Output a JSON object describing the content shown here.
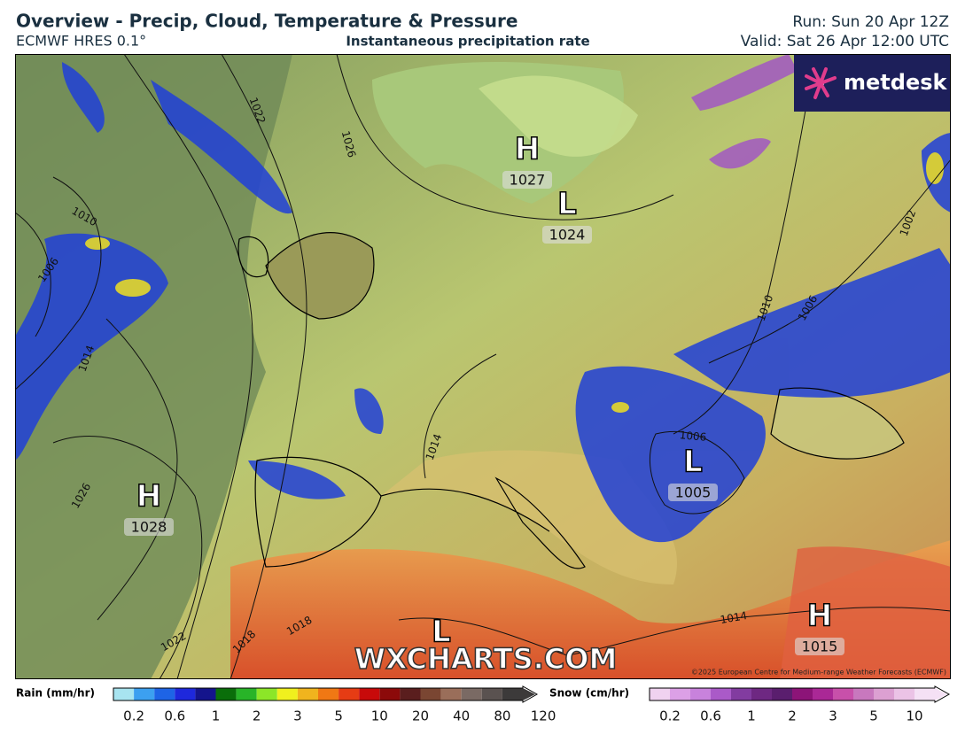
{
  "header": {
    "title": "Overview - Precip, Cloud, Temperature & Pressure",
    "model": "ECMWF HRES 0.1°",
    "subtitle": "Instantaneous precipitation rate",
    "run": "Run: Sun 20 Apr 12Z",
    "valid": "Valid: Sat 26 Apr 12:00 UTC"
  },
  "map": {
    "logo": "metdesk",
    "watermark": "WXCHARTS.COM",
    "copyright": "©2025 European Centre for Medium-range Weather Forecasts (ECMWF)",
    "pressure_centres": [
      {
        "letter": "H",
        "value": "1027"
      },
      {
        "letter": "L",
        "value": "1024"
      },
      {
        "letter": "H",
        "value": "1028"
      },
      {
        "letter": "L",
        "value": "1005"
      },
      {
        "letter": "L"
      },
      {
        "letter": "H",
        "value": "1015"
      }
    ],
    "isobar_labels": [
      "1022",
      "1026",
      "1010",
      "1006",
      "1014",
      "1026",
      "1022",
      "1018",
      "1018",
      "1014",
      "1014",
      "1006",
      "1010",
      "1006",
      "1002"
    ]
  },
  "legend": {
    "rain": {
      "label": "Rain (mm/hr)",
      "ticks": [
        0.2,
        0.6,
        1,
        2,
        3,
        5,
        10,
        20,
        40,
        80,
        120
      ],
      "colors": [
        "#a8e4f0",
        "#3ca0f0",
        "#1e64e6",
        "#1e28dc",
        "#14148c",
        "#0a6e0a",
        "#28b428",
        "#8ce628",
        "#f0f01e",
        "#f0b41e",
        "#f07814",
        "#e63c14",
        "#c80a0a",
        "#8c0a0a",
        "#5a1e1e",
        "#7a4632",
        "#9a6e5a",
        "#7a6a64",
        "#5a5250",
        "#3c3a3a"
      ]
    },
    "snow": {
      "label": "Snow (cm/hr)",
      "ticks": [
        0.2,
        0.6,
        1,
        2,
        3,
        5,
        10
      ],
      "colors": [
        "#f0d2f0",
        "#dca0e6",
        "#c882dc",
        "#aa5ac8",
        "#823ca0",
        "#6e2882",
        "#5a1e6e",
        "#8c1478",
        "#aa2896",
        "#c850aa",
        "#c878be",
        "#dca0d2",
        "#ebc3e6",
        "#f5e1f5"
      ]
    }
  }
}
